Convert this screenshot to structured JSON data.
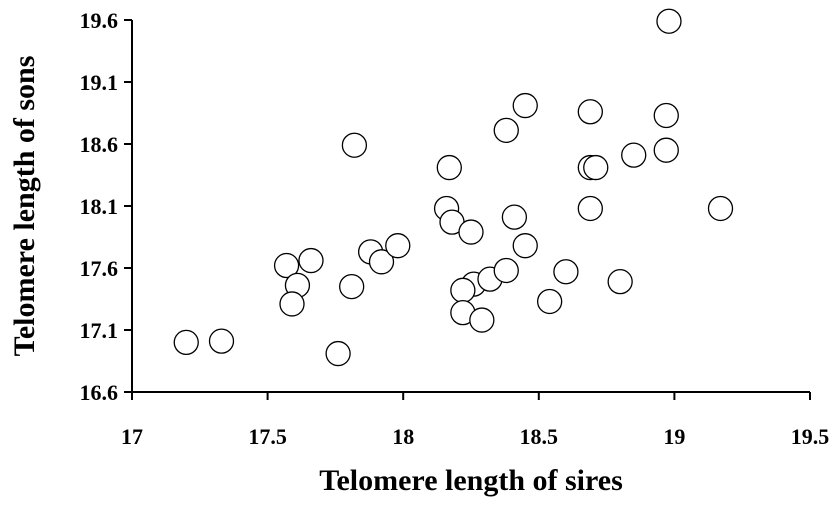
{
  "chart_data": {
    "type": "scatter",
    "xlabel": "Telomere length of sires",
    "ylabel": "Telomere length of sons",
    "xlim": [
      17,
      19.5
    ],
    "xticks": [
      17,
      17.5,
      18,
      18.5,
      19,
      19.5
    ],
    "ylim": [
      16.6,
      19.6
    ],
    "yticks": [
      16.6,
      17.1,
      17.6,
      18.1,
      18.6,
      19.1,
      19.6
    ],
    "color": "#ffffff",
    "x": [
      17.2,
      17.33,
      17.76,
      17.57,
      17.61,
      17.59,
      17.66,
      17.81,
      17.82,
      17.88,
      17.92,
      17.98,
      18.17,
      18.16,
      18.18,
      18.25,
      18.26,
      18.22,
      18.22,
      18.29,
      18.32,
      18.38,
      18.41,
      18.45,
      18.38,
      18.45,
      18.54,
      18.6,
      18.69,
      18.69,
      18.71,
      18.69,
      18.85,
      18.8,
      18.98,
      18.97,
      18.97,
      19.17
    ],
    "y": [
      17.0,
      17.01,
      16.91,
      17.62,
      17.46,
      17.31,
      17.66,
      17.45,
      18.59,
      17.73,
      17.65,
      17.78,
      18.41,
      18.08,
      17.97,
      17.89,
      17.47,
      17.42,
      17.24,
      17.18,
      17.51,
      17.58,
      18.01,
      17.78,
      18.71,
      18.91,
      17.33,
      17.57,
      18.86,
      18.41,
      18.41,
      18.08,
      18.51,
      17.49,
      19.59,
      18.83,
      18.55,
      18.08
    ]
  }
}
